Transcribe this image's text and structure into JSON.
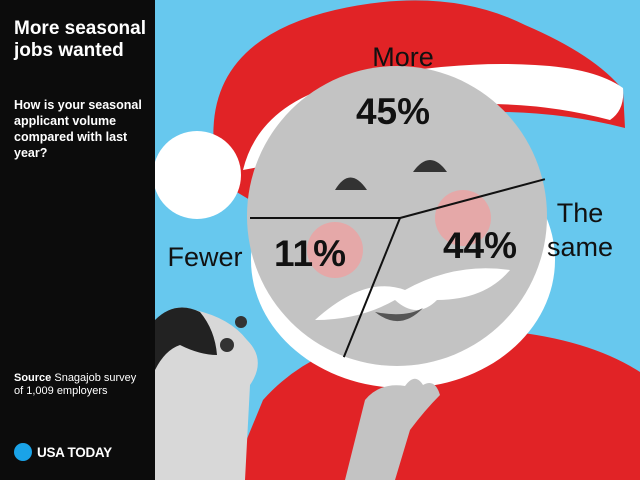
{
  "sidebar": {
    "title": "More seasonal jobs wanted",
    "question": "How is your seasonal applicant volume compared with last year?",
    "source_label": "Source",
    "source_text": "Snagajob survey of 1,009 employers",
    "brand": "USA TODAY"
  },
  "colors": {
    "sky": "#67c8ee",
    "santa_red": "#e12326",
    "beard_white": "#ffffff",
    "face_gray": "#c3c3c3",
    "cheek_pink": "#e5a8a8",
    "brand_dot": "#1aa3e8",
    "sidebar_bg": "#0c0c0c"
  },
  "chart_data": {
    "type": "pie",
    "title": "More seasonal jobs wanted",
    "subtitle": "How is your seasonal applicant volume compared with last year?",
    "slices": [
      {
        "name": "More",
        "value": 45,
        "value_label": "45%"
      },
      {
        "name": "The same",
        "value": 44,
        "value_label": "44%"
      },
      {
        "name": "Fewer",
        "value": 11,
        "value_label": "11%"
      }
    ]
  }
}
